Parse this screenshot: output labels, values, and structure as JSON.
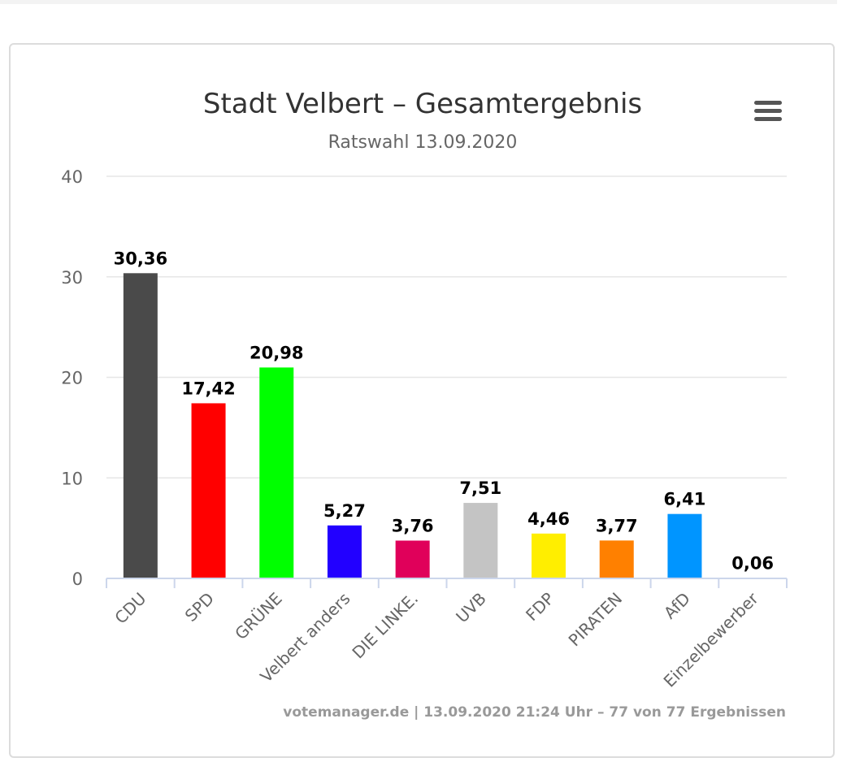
{
  "chart_data": {
    "type": "bar",
    "title": "Stadt Velbert – Gesamtergebnis",
    "subtitle": "Ratswahl 13.09.2020",
    "categories": [
      "CDU",
      "SPD",
      "GRÜNE",
      "Velbert anders",
      "DIE LINKE.",
      "UVB",
      "FDP",
      "PIRATEN",
      "AfD",
      "Einzelbewerber"
    ],
    "values": [
      30.36,
      17.42,
      20.98,
      5.27,
      3.76,
      7.51,
      4.46,
      3.77,
      6.41,
      0.06
    ],
    "data_labels": [
      "30,36",
      "17,42",
      "20,98",
      "5,27",
      "3,76",
      "7,51",
      "4,46",
      "3,77",
      "6,41",
      "0,06"
    ],
    "colors": [
      "#4a4a4a",
      "#ff0000",
      "#00ff00",
      "#2200ff",
      "#e0005a",
      "#c4c4c4",
      "#ffee00",
      "#ff8000",
      "#0095ff",
      "#ffffff"
    ],
    "ylim": [
      0,
      40
    ],
    "yticks": [
      0,
      10,
      20,
      30,
      40
    ],
    "grid": true,
    "legend": "none",
    "xlabel": "",
    "ylabel": ""
  },
  "credits": "votemanager.de | 13.09.2020 21:24 Uhr – 77 von 77 Ergebnissen",
  "menu": {
    "icon": "hamburger-menu-icon"
  }
}
